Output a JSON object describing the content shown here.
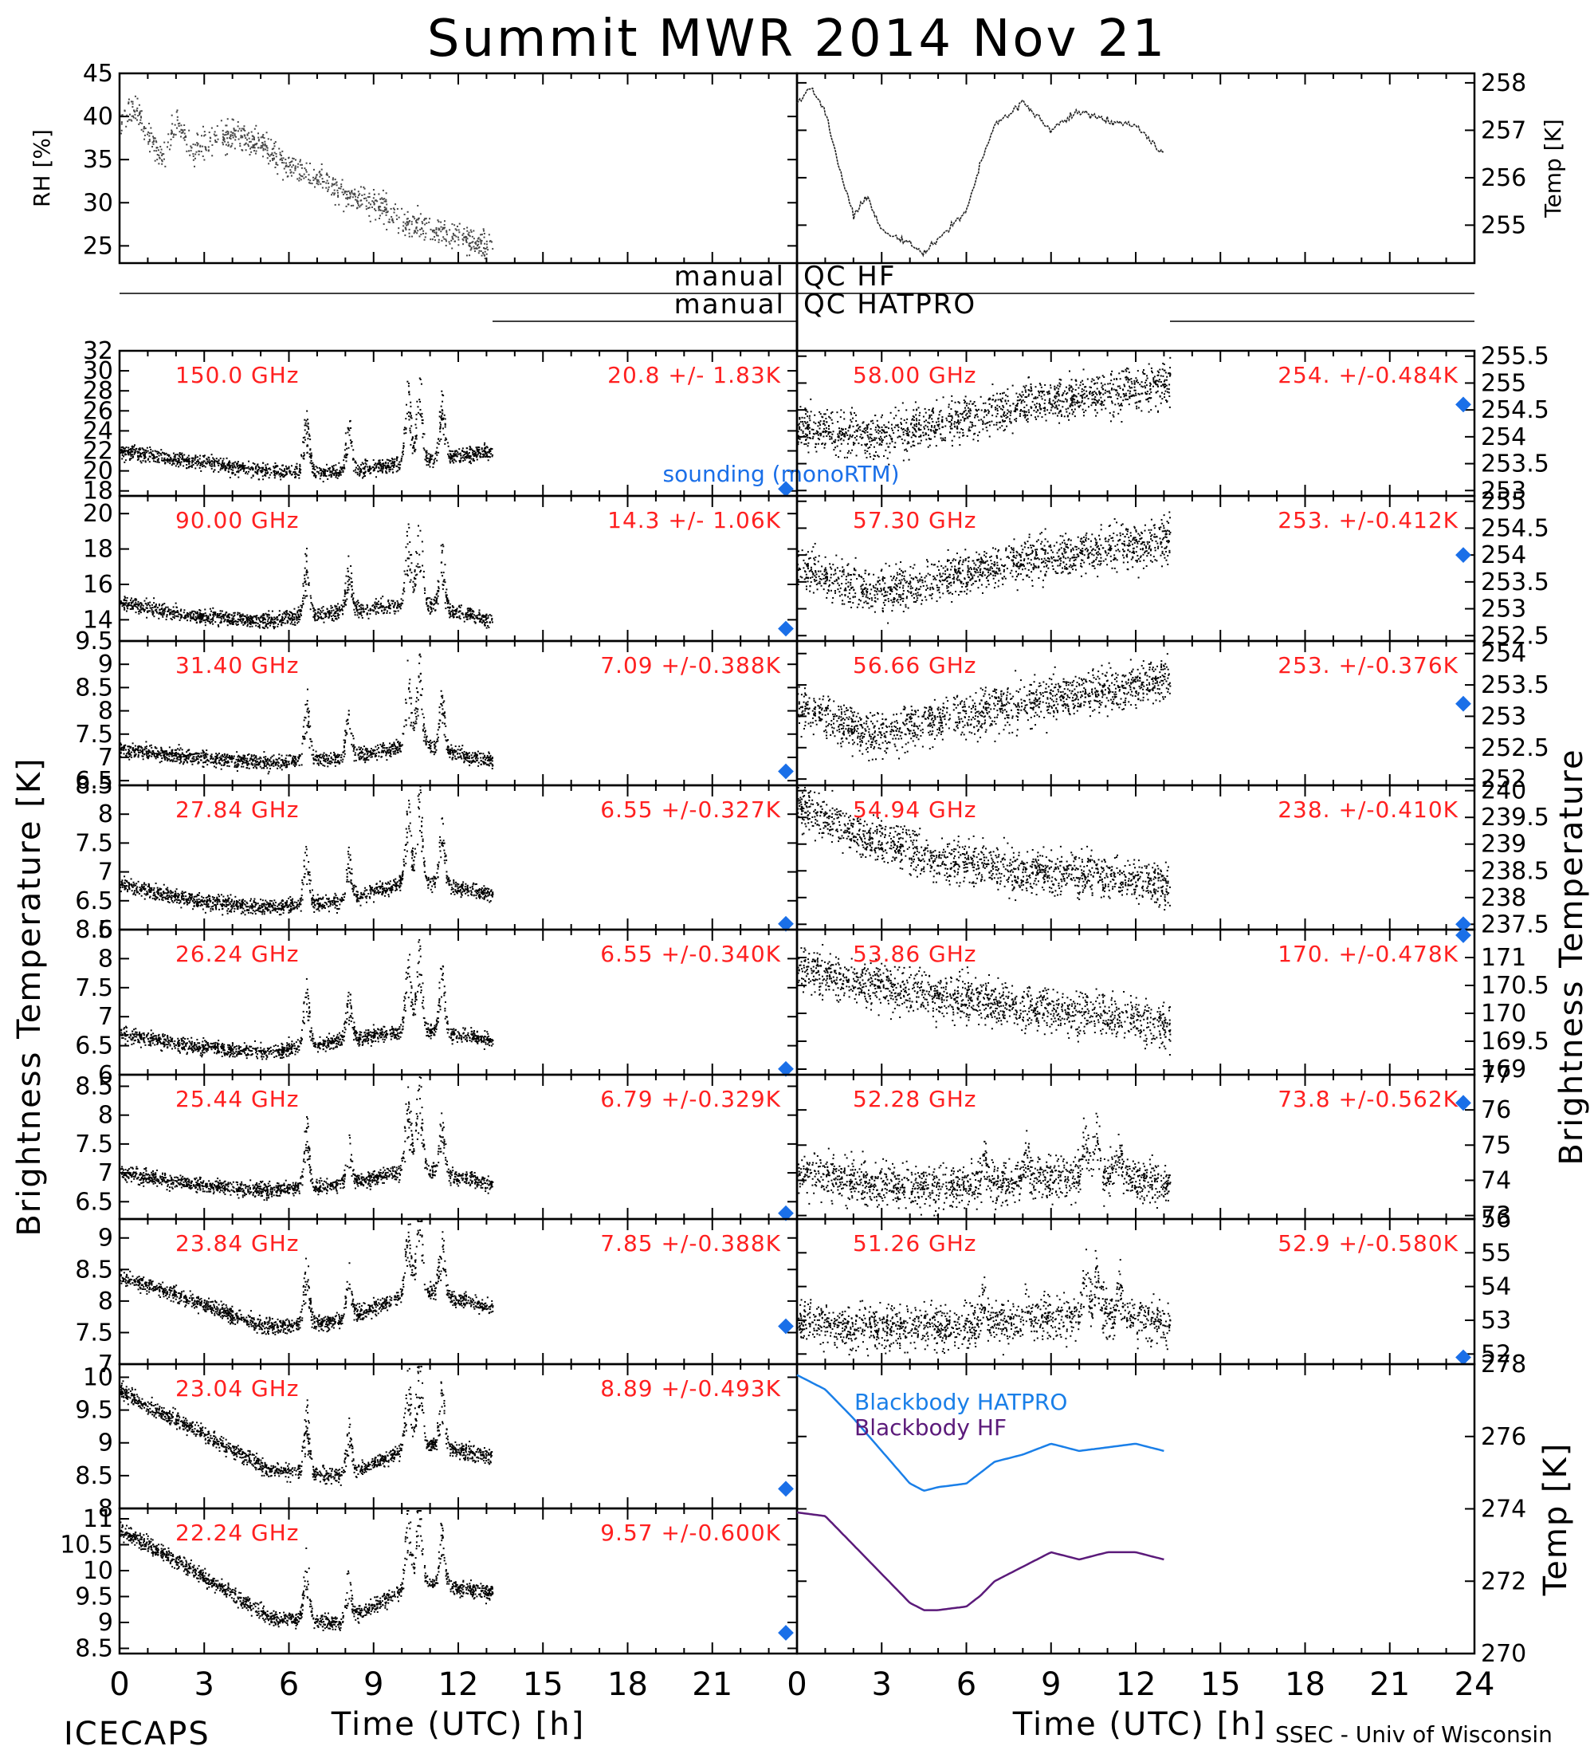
{
  "title": "Summit MWR 2014 Nov 21",
  "footer_left": "ICECAPS",
  "footer_right": "SSEC - Univ of Wisconsin",
  "xlabel": "Time (UTC) [h]",
  "ylabel_left": "Brightness Temperature [K]",
  "ylabel_right": "Brightness Temperature",
  "qc": {
    "hf": {
      "left": "manual",
      "right": "QC HF"
    },
    "hatpro": {
      "left": "manual",
      "right": "QC HATPRO"
    }
  },
  "colors": {
    "data": "#000000",
    "labels": "#ff2020",
    "sounding": "#1a6fe8",
    "hatpro": "#1a7fe8",
    "hf": "#5b1a7a"
  },
  "chart_data": [
    {
      "type": "scatter",
      "id": "rh",
      "ylabel": "RH [%]",
      "ylim": [
        23,
        45
      ],
      "yticks": [
        25,
        30,
        35,
        40,
        45
      ],
      "x": [
        0,
        0.5,
        1,
        1.5,
        2,
        2.5,
        3,
        4,
        5,
        6,
        7,
        8,
        9,
        10,
        11,
        12,
        13
      ],
      "y": [
        39,
        41,
        38,
        35,
        40,
        36,
        37,
        38,
        37,
        34,
        33,
        31,
        30,
        28,
        27,
        26,
        25
      ]
    },
    {
      "type": "line",
      "id": "temp",
      "ylabel": "Temp [K]",
      "ylim": [
        254.2,
        258.2
      ],
      "yticks": [
        255,
        256,
        257,
        258
      ],
      "x": [
        0,
        0.5,
        1,
        1.5,
        2,
        2.5,
        3,
        4,
        4.5,
        5,
        6,
        6.5,
        7,
        8,
        9,
        10,
        11,
        12,
        13
      ],
      "y": [
        257.6,
        257.9,
        257.4,
        256.2,
        255.2,
        255.6,
        254.9,
        254.6,
        254.4,
        254.7,
        255.3,
        256.3,
        257.1,
        257.6,
        257.0,
        257.4,
        257.2,
        257.1,
        256.5
      ]
    },
    {
      "type": "scatter",
      "freq": "150.0 GHz",
      "stat": "20.8 +/-  1.83K",
      "ylim": [
        17.5,
        32
      ],
      "yticks": [
        18,
        20,
        22,
        24,
        26,
        28,
        30,
        32
      ],
      "base": [
        22,
        21,
        20,
        20,
        21,
        22
      ],
      "sounding": 18.2,
      "sounding_label": "sounding (monoRTM)"
    },
    {
      "type": "scatter",
      "freq": "90.00 GHz",
      "stat": "14.3 +/-  1.06K",
      "ylim": [
        12.8,
        21
      ],
      "yticks": [
        14,
        16,
        18,
        20
      ],
      "base": [
        15,
        14.2,
        14,
        14.5,
        15,
        14
      ],
      "sounding": 13.5
    },
    {
      "type": "scatter",
      "freq": "31.40 GHz",
      "stat": "7.09 +/-0.388K",
      "ylim": [
        6.4,
        9.5
      ],
      "yticks": [
        6.5,
        7.0,
        7.5,
        8.0,
        8.5,
        9.0,
        9.5
      ],
      "base": [
        7.2,
        7.0,
        6.9,
        7.0,
        7.3,
        6.9
      ],
      "sounding": 6.7
    },
    {
      "type": "scatter",
      "freq": "27.84 GHz",
      "stat": "6.55 +/-0.327K",
      "ylim": [
        6.0,
        8.5
      ],
      "yticks": [
        6.0,
        6.5,
        7.0,
        7.5,
        8.0,
        8.5
      ],
      "base": [
        6.8,
        6.5,
        6.4,
        6.5,
        6.9,
        6.6
      ],
      "sounding": 6.1
    },
    {
      "type": "scatter",
      "freq": "26.24 GHz",
      "stat": "6.55 +/-0.340K",
      "ylim": [
        6.0,
        8.5
      ],
      "yticks": [
        6.0,
        6.5,
        7.0,
        7.5,
        8.0,
        8.5
      ],
      "base": [
        6.7,
        6.5,
        6.4,
        6.6,
        6.8,
        6.6
      ],
      "sounding": 6.1
    },
    {
      "type": "scatter",
      "freq": "25.44 GHz",
      "stat": "6.79 +/-0.329K",
      "ylim": [
        6.2,
        8.7
      ],
      "yticks": [
        6.5,
        7.0,
        7.5,
        8.0,
        8.5
      ],
      "base": [
        7.0,
        6.8,
        6.7,
        6.8,
        7.1,
        6.8
      ],
      "sounding": 6.3
    },
    {
      "type": "scatter",
      "freq": "23.84 GHz",
      "stat": "7.85 +/-0.388K",
      "ylim": [
        7.0,
        9.3
      ],
      "yticks": [
        7.0,
        7.5,
        8.0,
        8.5,
        9.0
      ],
      "base": [
        8.4,
        8.0,
        7.6,
        7.7,
        8.2,
        7.9
      ],
      "sounding": 7.6
    },
    {
      "type": "scatter",
      "freq": "23.04 GHz",
      "stat": "8.89 +/-0.493K",
      "ylim": [
        8.0,
        10.2
      ],
      "yticks": [
        8.0,
        8.5,
        9.0,
        9.5,
        10.0
      ],
      "base": [
        9.8,
        9.2,
        8.6,
        8.5,
        9.0,
        8.8
      ],
      "sounding": 8.3
    },
    {
      "type": "scatter",
      "freq": "22.24 GHz",
      "stat": "9.57 +/-0.600K",
      "ylim": [
        8.4,
        11.2
      ],
      "yticks": [
        8.5,
        9.0,
        9.5,
        10.0,
        10.5,
        11.0
      ],
      "base": [
        10.8,
        10.0,
        9.1,
        9.0,
        9.8,
        9.6
      ],
      "sounding": 8.8
    },
    {
      "type": "scatter",
      "freq": "58.00 GHz",
      "stat": "254. +/-0.484K",
      "ylim": [
        252.9,
        255.6
      ],
      "yticks": [
        253.0,
        253.5,
        254.0,
        254.5,
        255.0,
        255.5
      ],
      "base": [
        254.2,
        254.0,
        254.3,
        254.6,
        254.8,
        255.0
      ],
      "sounding": 254.6
    },
    {
      "type": "scatter",
      "freq": "57.30 GHz",
      "stat": "253. +/-0.412K",
      "ylim": [
        252.4,
        255.1
      ],
      "yticks": [
        252.5,
        253.0,
        253.5,
        254.0,
        254.5,
        255.0
      ],
      "base": [
        253.8,
        253.3,
        253.6,
        253.9,
        254.1,
        254.3
      ],
      "sounding": 254.0
    },
    {
      "type": "scatter",
      "freq": "56.66 GHz",
      "stat": "253. +/-0.376K",
      "ylim": [
        251.9,
        254.2
      ],
      "yticks": [
        252.0,
        252.5,
        253.0,
        253.5,
        254.0
      ],
      "base": [
        253.2,
        252.7,
        253.0,
        253.2,
        253.4,
        253.6
      ],
      "sounding": 253.2
    },
    {
      "type": "scatter",
      "freq": "54.94 GHz",
      "stat": "238. +/-0.410K",
      "ylim": [
        237.4,
        240.1
      ],
      "yticks": [
        237.5,
        238.0,
        238.5,
        239.0,
        239.5,
        240.0
      ],
      "base": [
        239.7,
        239.1,
        238.7,
        238.5,
        238.4,
        238.2
      ],
      "sounding": 237.5
    },
    {
      "type": "scatter",
      "freq": "53.86 GHz",
      "stat": "170. +/-0.478K",
      "ylim": [
        168.9,
        171.5
      ],
      "yticks": [
        169.0,
        169.5,
        170.0,
        170.5,
        171.0
      ],
      "base": [
        170.8,
        170.5,
        170.3,
        170.1,
        170.0,
        169.8
      ],
      "sounding": 171.4
    },
    {
      "type": "scatter",
      "freq": "52.28 GHz",
      "stat": "73.8 +/-0.562K",
      "ylim": [
        72.9,
        77
      ],
      "yticks": [
        73,
        74,
        75,
        76,
        77
      ],
      "base": [
        74.3,
        73.9,
        73.8,
        74.0,
        74.2,
        73.9
      ],
      "sounding": 76.2
    },
    {
      "type": "scatter",
      "freq": "51.26 GHz",
      "stat": "52.9 +/-0.580K",
      "ylim": [
        51.7,
        56
      ],
      "yticks": [
        52,
        53,
        54,
        55,
        56
      ],
      "base": [
        53.0,
        52.8,
        52.8,
        53.0,
        53.2,
        52.9
      ],
      "sounding": 51.9
    },
    {
      "type": "line",
      "id": "blackbody",
      "ylabel": "Temp [K]",
      "ylim": [
        270,
        278
      ],
      "yticks": [
        270,
        272,
        274,
        276,
        278
      ],
      "series": [
        {
          "name": "Blackbody HATPRO",
          "x": [
            0,
            1,
            2,
            3,
            4,
            4.5,
            5,
            6,
            6.5,
            7,
            8,
            9,
            10,
            11,
            12,
            13
          ],
          "y": [
            277.7,
            277.3,
            276.5,
            275.6,
            274.7,
            274.5,
            274.6,
            274.7,
            275.0,
            275.3,
            275.5,
            275.8,
            275.6,
            275.7,
            275.8,
            275.6
          ]
        },
        {
          "name": "Blackbody HF",
          "x": [
            0,
            1,
            2,
            3,
            4,
            4.5,
            5,
            6,
            6.5,
            7,
            8,
            9,
            10,
            11,
            12,
            13
          ],
          "y": [
            273.9,
            273.8,
            273.0,
            272.2,
            271.4,
            271.2,
            271.2,
            271.3,
            271.6,
            272.0,
            272.4,
            272.8,
            272.6,
            272.8,
            272.8,
            272.6
          ]
        }
      ]
    }
  ]
}
